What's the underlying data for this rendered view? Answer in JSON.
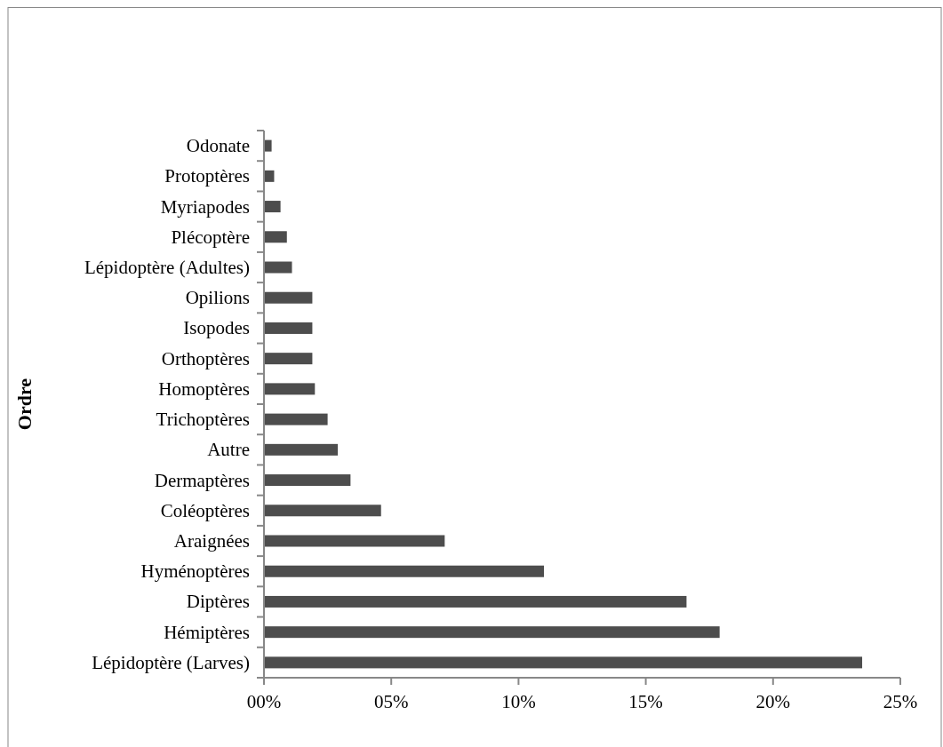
{
  "chart_data": {
    "type": "bar",
    "orientation": "horizontal",
    "ylabel": "Ordre",
    "categories": [
      "Odonate",
      "Protoptères",
      "Myriapodes",
      "Plécoptère",
      "Lépidoptère (Adultes)",
      "Opilions",
      "Isopodes",
      "Orthoptères",
      "Homoptères",
      "Trichoptères",
      "Autre",
      "Dermaptères",
      "Coléoptères",
      "Araignées",
      "Hyménoptères",
      "Diptères",
      "Hémiptères",
      "Lépidoptère (Larves)"
    ],
    "values": [
      0.3,
      0.4,
      0.65,
      0.9,
      1.1,
      1.9,
      1.9,
      1.9,
      2.0,
      2.5,
      2.9,
      3.4,
      4.6,
      7.1,
      11.0,
      16.6,
      17.9,
      23.5
    ],
    "color": "#4d4d4d",
    "xlim": [
      0,
      25
    ],
    "xticks": [
      {
        "value": 0,
        "label": "00%"
      },
      {
        "value": 5,
        "label": "05%"
      },
      {
        "value": 10,
        "label": "10%"
      },
      {
        "value": 15,
        "label": "15%"
      },
      {
        "value": 20,
        "label": "20%"
      },
      {
        "value": 25,
        "label": "25%"
      }
    ],
    "grid": false
  }
}
